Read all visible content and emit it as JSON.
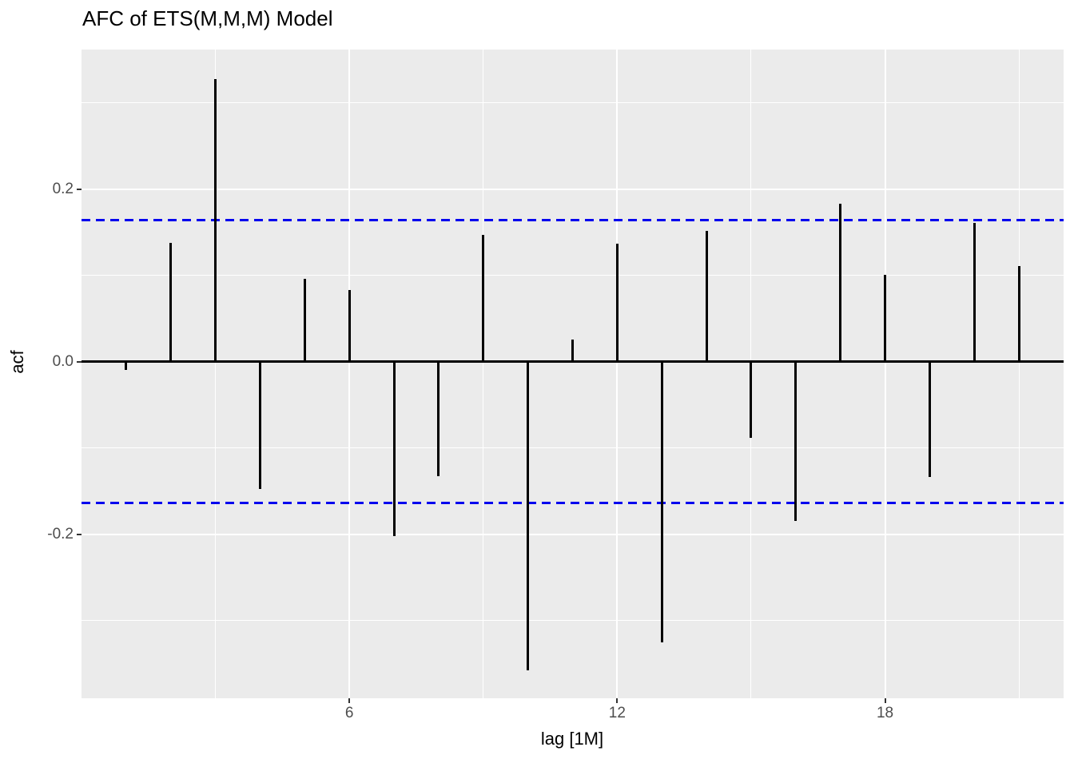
{
  "chart_data": {
    "type": "bar",
    "variant": "acf-lollipop",
    "title": "AFC of ETS(M,M,M) Model",
    "xlabel": "lag [1M]",
    "ylabel": "acf",
    "x": [
      1,
      2,
      3,
      4,
      5,
      6,
      7,
      8,
      9,
      10,
      11,
      12,
      13,
      14,
      15,
      16,
      17,
      18,
      19,
      20,
      21
    ],
    "values": [
      -0.008,
      0.138,
      0.328,
      -0.146,
      0.096,
      0.083,
      -0.201,
      -0.131,
      0.147,
      -0.356,
      0.026,
      0.137,
      -0.324,
      0.152,
      -0.087,
      -0.183,
      0.183,
      0.101,
      -0.132,
      0.161,
      0.111
    ],
    "confidence_bounds": {
      "upper": 0.164,
      "lower": -0.164
    },
    "xlim": [
      0,
      22
    ],
    "ylim": [
      -0.39,
      0.362
    ],
    "x_major_ticks": [
      6,
      12,
      18
    ],
    "x_major_tick_labels": [
      "6",
      "12",
      "18"
    ],
    "x_minor_gridlines": [
      3,
      9,
      15,
      21
    ],
    "y_major_ticks": [
      0.2,
      0.0,
      -0.2
    ],
    "y_major_tick_labels": [
      "0.2",
      "0.0",
      "-0.2"
    ],
    "y_minor_gridlines": [
      0.3,
      0.1,
      -0.1,
      -0.3
    ],
    "grid": true,
    "legend": "none",
    "colors": {
      "panel_background": "#EBEBEB",
      "gridline": "#FFFFFF",
      "bar": "#000000",
      "zero_line": "#000000",
      "confidence_line": "#0000EE",
      "tick_label": "#4D4D4D",
      "tick_mark": "#333333",
      "title": "#000000"
    }
  }
}
